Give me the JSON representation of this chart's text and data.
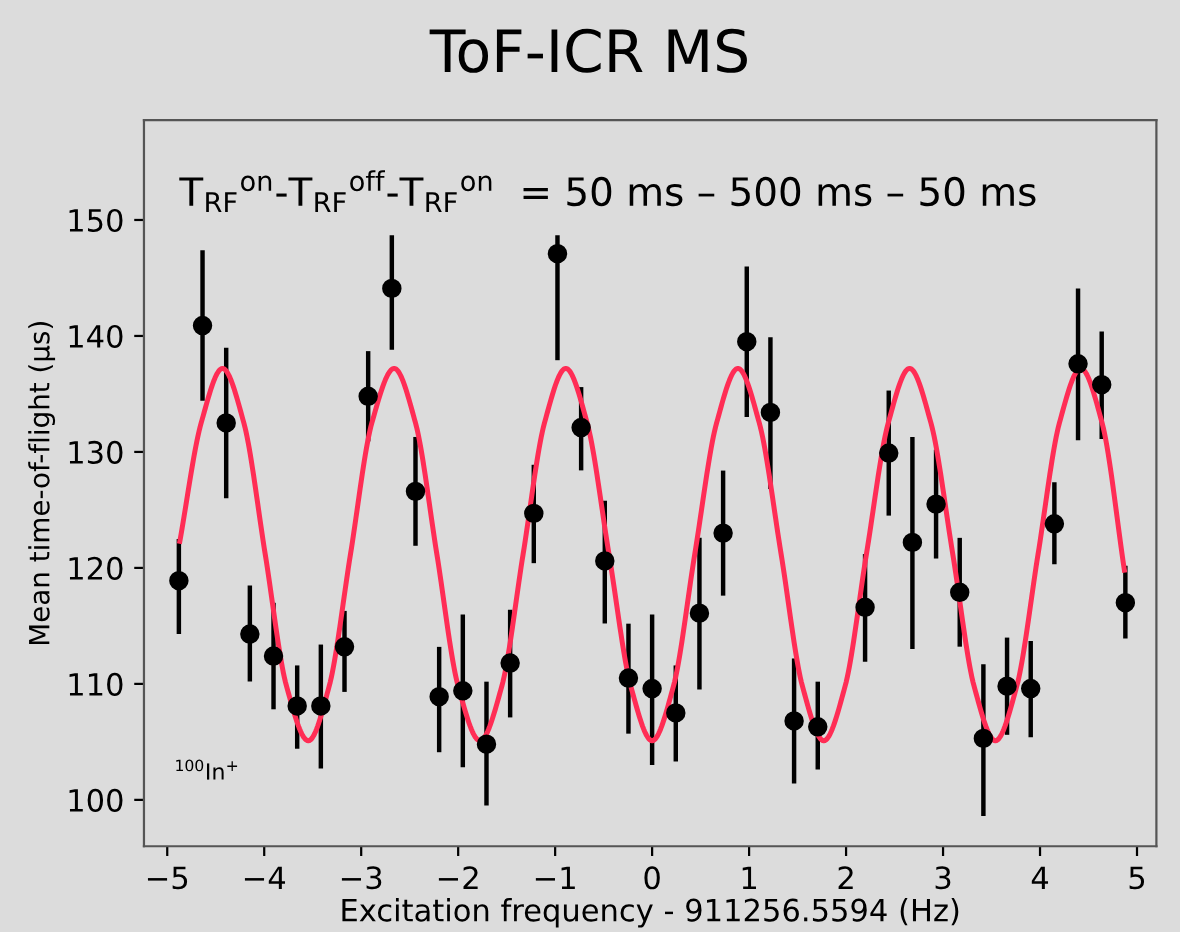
{
  "chart_data": {
    "type": "scatter",
    "title": "ToF-ICR MS",
    "xlabel": "Excitation frequency - 911256.5594 (Hz)",
    "ylabel": "Mean time-of-flight (μs)",
    "annotations": [
      "T$_{RF}$$^{on}$-T$_{RF}$$^{off}$-T$_{RF}$$^{on}$  = 50 ms – 500 ms – 50 ms",
      "$^{100}$In$^{+}$"
    ],
    "xlim": [
      -5.24,
      5.2
    ],
    "xticks": [
      -5,
      -4,
      -3,
      -2,
      -1,
      0,
      1,
      2,
      3,
      4,
      5
    ],
    "ylim": [
      96,
      158.6
    ],
    "yticks": [
      100,
      110,
      120,
      130,
      140,
      150
    ],
    "grid": false,
    "series": [
      {
        "color": "#000000",
        "marker": "circle",
        "x": [
          -4.88,
          -4.636,
          -4.392,
          -4.148,
          -3.904,
          -3.66,
          -3.416,
          -3.172,
          -2.928,
          -2.684,
          -2.44,
          -2.196,
          -1.952,
          -1.708,
          -1.464,
          -1.22,
          -0.976,
          -0.732,
          -0.488,
          -0.244,
          0,
          0.244,
          0.488,
          0.732,
          0.976,
          1.22,
          1.464,
          1.708,
          2.196,
          2.44,
          2.684,
          2.928,
          3.172,
          3.416,
          3.66,
          3.904,
          4.148,
          4.392,
          4.636,
          4.88
        ],
        "values": [
          118.9,
          140.9,
          132.5,
          114.3,
          112.4,
          108.1,
          108.1,
          113.2,
          134.8,
          144.1,
          126.6,
          108.9,
          109.4,
          104.8,
          111.8,
          124.7,
          147.1,
          132.1,
          120.6,
          110.5,
          109.6,
          107.5,
          116.1,
          123.0,
          139.5,
          133.4,
          106.8,
          106.3,
          116.6,
          129.9,
          122.2,
          125.5,
          117.9,
          105.3,
          109.8,
          109.6,
          123.8,
          137.6,
          135.8,
          117.0
        ],
        "errors": [
          [
            114.5,
            122.3
          ],
          [
            134.6,
            147.2
          ],
          [
            126.2,
            138.8
          ],
          [
            110.4,
            118.3
          ],
          [
            108.0,
            116.8
          ],
          [
            104.6,
            111.4
          ],
          [
            102.9,
            113.2
          ],
          [
            109.5,
            116.1
          ],
          [
            131.1,
            138.5
          ],
          [
            139.0,
            148.5
          ],
          [
            122.1,
            131.1
          ],
          [
            104.3,
            113.0
          ],
          [
            103.0,
            115.8
          ],
          [
            99.7,
            110.0
          ],
          [
            107.3,
            116.2
          ],
          [
            120.6,
            128.7
          ],
          [
            138.1,
            148.5
          ],
          [
            128.6,
            135.4
          ],
          [
            115.4,
            125.6
          ],
          [
            105.9,
            115.0
          ],
          [
            103.2,
            115.8
          ],
          [
            103.5,
            111.4
          ],
          [
            109.7,
            122.4
          ],
          [
            117.8,
            128.2
          ],
          [
            133.2,
            145.8
          ],
          [
            127.0,
            139.7
          ],
          [
            101.6,
            112.0
          ],
          [
            102.8,
            110.0
          ],
          [
            112.1,
            121.0
          ],
          [
            124.7,
            135.1
          ],
          [
            113.2,
            131.1
          ],
          [
            121.0,
            130.0
          ],
          [
            113.4,
            122.4
          ],
          [
            98.8,
            111.5
          ],
          [
            105.8,
            113.8
          ],
          [
            105.6,
            113.5
          ],
          [
            120.5,
            127.2
          ],
          [
            131.2,
            143.9
          ],
          [
            131.3,
            140.2
          ],
          [
            114.1,
            120.0
          ]
        ]
      },
      {
        "type": "line",
        "color": "#ff2d55",
        "marker": "none",
        "line_style": "solid",
        "x": [
          -4.87,
          -4.65,
          -4.43,
          -4.21,
          -3.99,
          -3.77,
          -3.545,
          -3.33,
          -3.11,
          -2.89,
          -2.66,
          -2.44,
          -2.22,
          -2.0,
          -1.775,
          -1.55,
          -1.33,
          -1.11,
          -0.89,
          -0.67,
          -0.445,
          -0.22,
          0,
          0.22,
          0.44,
          0.665,
          0.885,
          1.105,
          1.33,
          1.55,
          1.77,
          1.99,
          2.21,
          2.435,
          2.655,
          2.875,
          3.1,
          3.32,
          3.54,
          3.76,
          3.98,
          4.2,
          4.42,
          4.64,
          4.87
        ],
        "values": [
          122.3,
          132.5,
          137.2,
          132.5,
          121.2,
          109.8,
          105.1,
          109.8,
          121.2,
          132.5,
          137.2,
          132.5,
          121.2,
          109.8,
          105.1,
          109.8,
          121.2,
          132.5,
          137.2,
          132.5,
          121.2,
          109.8,
          105.1,
          109.8,
          121.2,
          132.5,
          137.2,
          132.5,
          121.2,
          109.8,
          105.1,
          109.8,
          121.2,
          132.5,
          137.2,
          132.5,
          121.2,
          109.8,
          105.1,
          109.8,
          121.2,
          132.5,
          137.2,
          132.5,
          119.8
        ]
      }
    ]
  }
}
